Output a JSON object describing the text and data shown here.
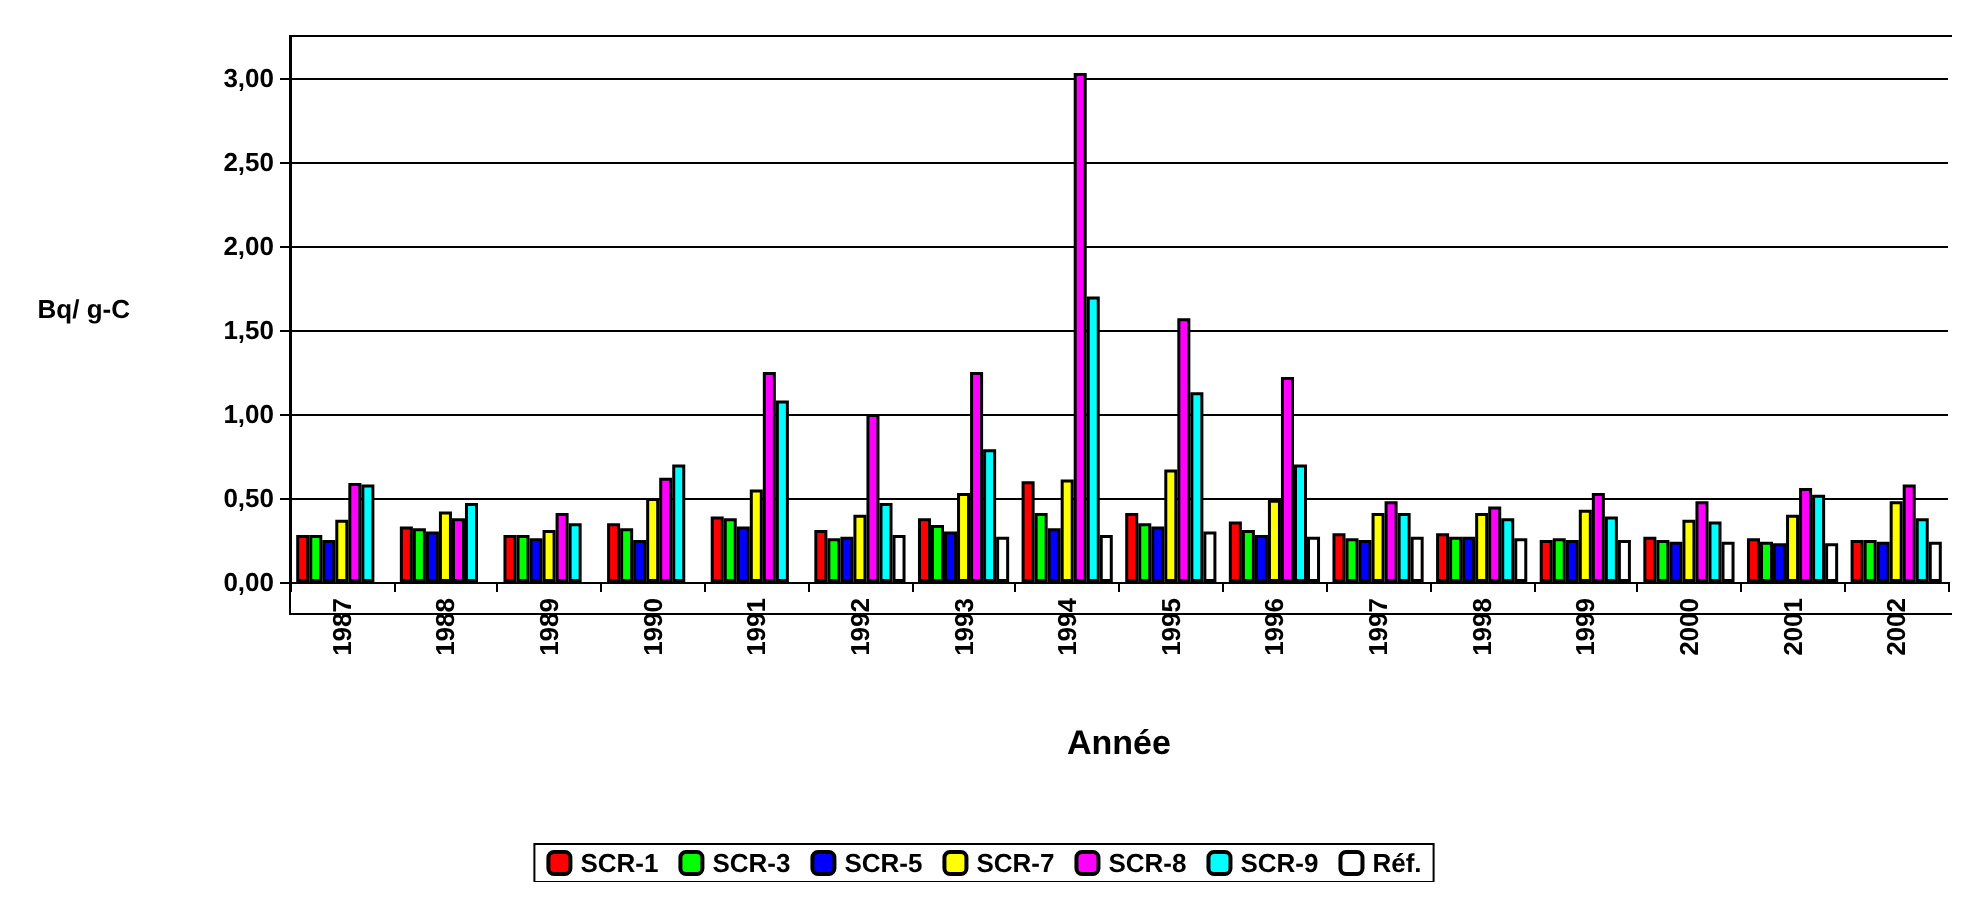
{
  "chart_data": {
    "type": "bar",
    "xlabel": "Année",
    "ylabel": "Bq/ g-C",
    "categories": [
      "1987",
      "1988",
      "1989",
      "1990",
      "1991",
      "1992",
      "1993",
      "1994",
      "1995",
      "1996",
      "1997",
      "1998",
      "1999",
      "2000",
      "2001",
      "2002"
    ],
    "series": [
      {
        "name": "SCR-1",
        "color": "#ff0000",
        "values": [
          0.28,
          0.33,
          0.28,
          0.35,
          0.39,
          0.31,
          0.38,
          0.6,
          0.41,
          0.36,
          0.29,
          0.29,
          0.25,
          0.27,
          0.26,
          0.25
        ]
      },
      {
        "name": "SCR-3",
        "color": "#00ff00",
        "values": [
          0.28,
          0.32,
          0.28,
          0.32,
          0.38,
          0.26,
          0.34,
          0.41,
          0.35,
          0.31,
          0.26,
          0.27,
          0.26,
          0.25,
          0.24,
          0.25
        ]
      },
      {
        "name": "SCR-5",
        "color": "#0000ff",
        "values": [
          0.25,
          0.3,
          0.26,
          0.25,
          0.33,
          0.27,
          0.3,
          0.32,
          0.33,
          0.28,
          0.25,
          0.27,
          0.25,
          0.24,
          0.23,
          0.24
        ]
      },
      {
        "name": "SCR-7",
        "color": "#ffff00",
        "values": [
          0.37,
          0.42,
          0.31,
          0.5,
          0.55,
          0.4,
          0.53,
          0.61,
          0.67,
          0.49,
          0.41,
          0.41,
          0.43,
          0.37,
          0.4,
          0.48
        ]
      },
      {
        "name": "SCR-8",
        "color": "#ff00ff",
        "values": [
          0.59,
          0.38,
          0.41,
          0.62,
          1.25,
          1.0,
          1.25,
          3.03,
          1.57,
          1.22,
          0.48,
          0.45,
          0.53,
          0.48,
          0.56,
          0.58
        ]
      },
      {
        "name": "SCR-9",
        "color": "#00ffff",
        "values": [
          0.58,
          0.47,
          0.35,
          0.7,
          1.08,
          0.47,
          0.79,
          1.7,
          1.13,
          0.7,
          0.41,
          0.38,
          0.39,
          0.36,
          0.52,
          0.38
        ]
      },
      {
        "name": "Réf.",
        "color": "#ffffff",
        "values": [
          null,
          null,
          null,
          null,
          null,
          0.28,
          0.27,
          0.28,
          0.3,
          0.27,
          0.27,
          0.26,
          0.25,
          0.24,
          0.23,
          0.24
        ]
      }
    ],
    "ylim": [
      0,
      3.25
    ],
    "yticks": [
      {
        "value": 0,
        "label": "0,00"
      },
      {
        "value": 0.5,
        "label": "0,50"
      },
      {
        "value": 1,
        "label": "1,00"
      },
      {
        "value": 1.5,
        "label": "1,50"
      },
      {
        "value": 2,
        "label": "2,00"
      },
      {
        "value": 2.5,
        "label": "2,50"
      },
      {
        "value": 3,
        "label": "3,00"
      }
    ],
    "grid": "y",
    "legend": "bottom"
  }
}
